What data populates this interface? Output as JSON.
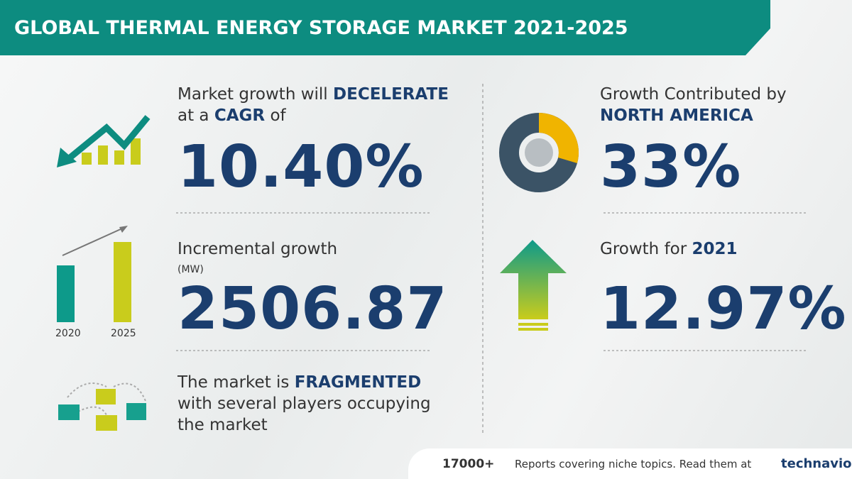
{
  "header": {
    "title": "GLOBAL THERMAL ENERGY STORAGE MARKET 2021-2025"
  },
  "cagr": {
    "text1": "Market growth will",
    "emphasis1": "DECELERATE",
    "text2": "at a",
    "emphasis2": "CAGR",
    "text3": "of",
    "value": "10.40%"
  },
  "incremental": {
    "label": "Incremental growth",
    "unit": "(MW)",
    "value": "2506.87",
    "years": [
      "2020",
      "2025"
    ]
  },
  "structure": {
    "text1": "The market is",
    "emphasis": "FRAGMENTED",
    "text2": "with several players occupying the market"
  },
  "region": {
    "label": "Growth Contributed by",
    "name": "NORTH AMERICA",
    "value": "33%"
  },
  "yoy": {
    "label": "Growth for",
    "year": "2021",
    "value": "12.97%"
  },
  "footer": {
    "count": "17000+",
    "text": "Reports covering niche topics. Read them at",
    "brand": "technavio"
  }
}
